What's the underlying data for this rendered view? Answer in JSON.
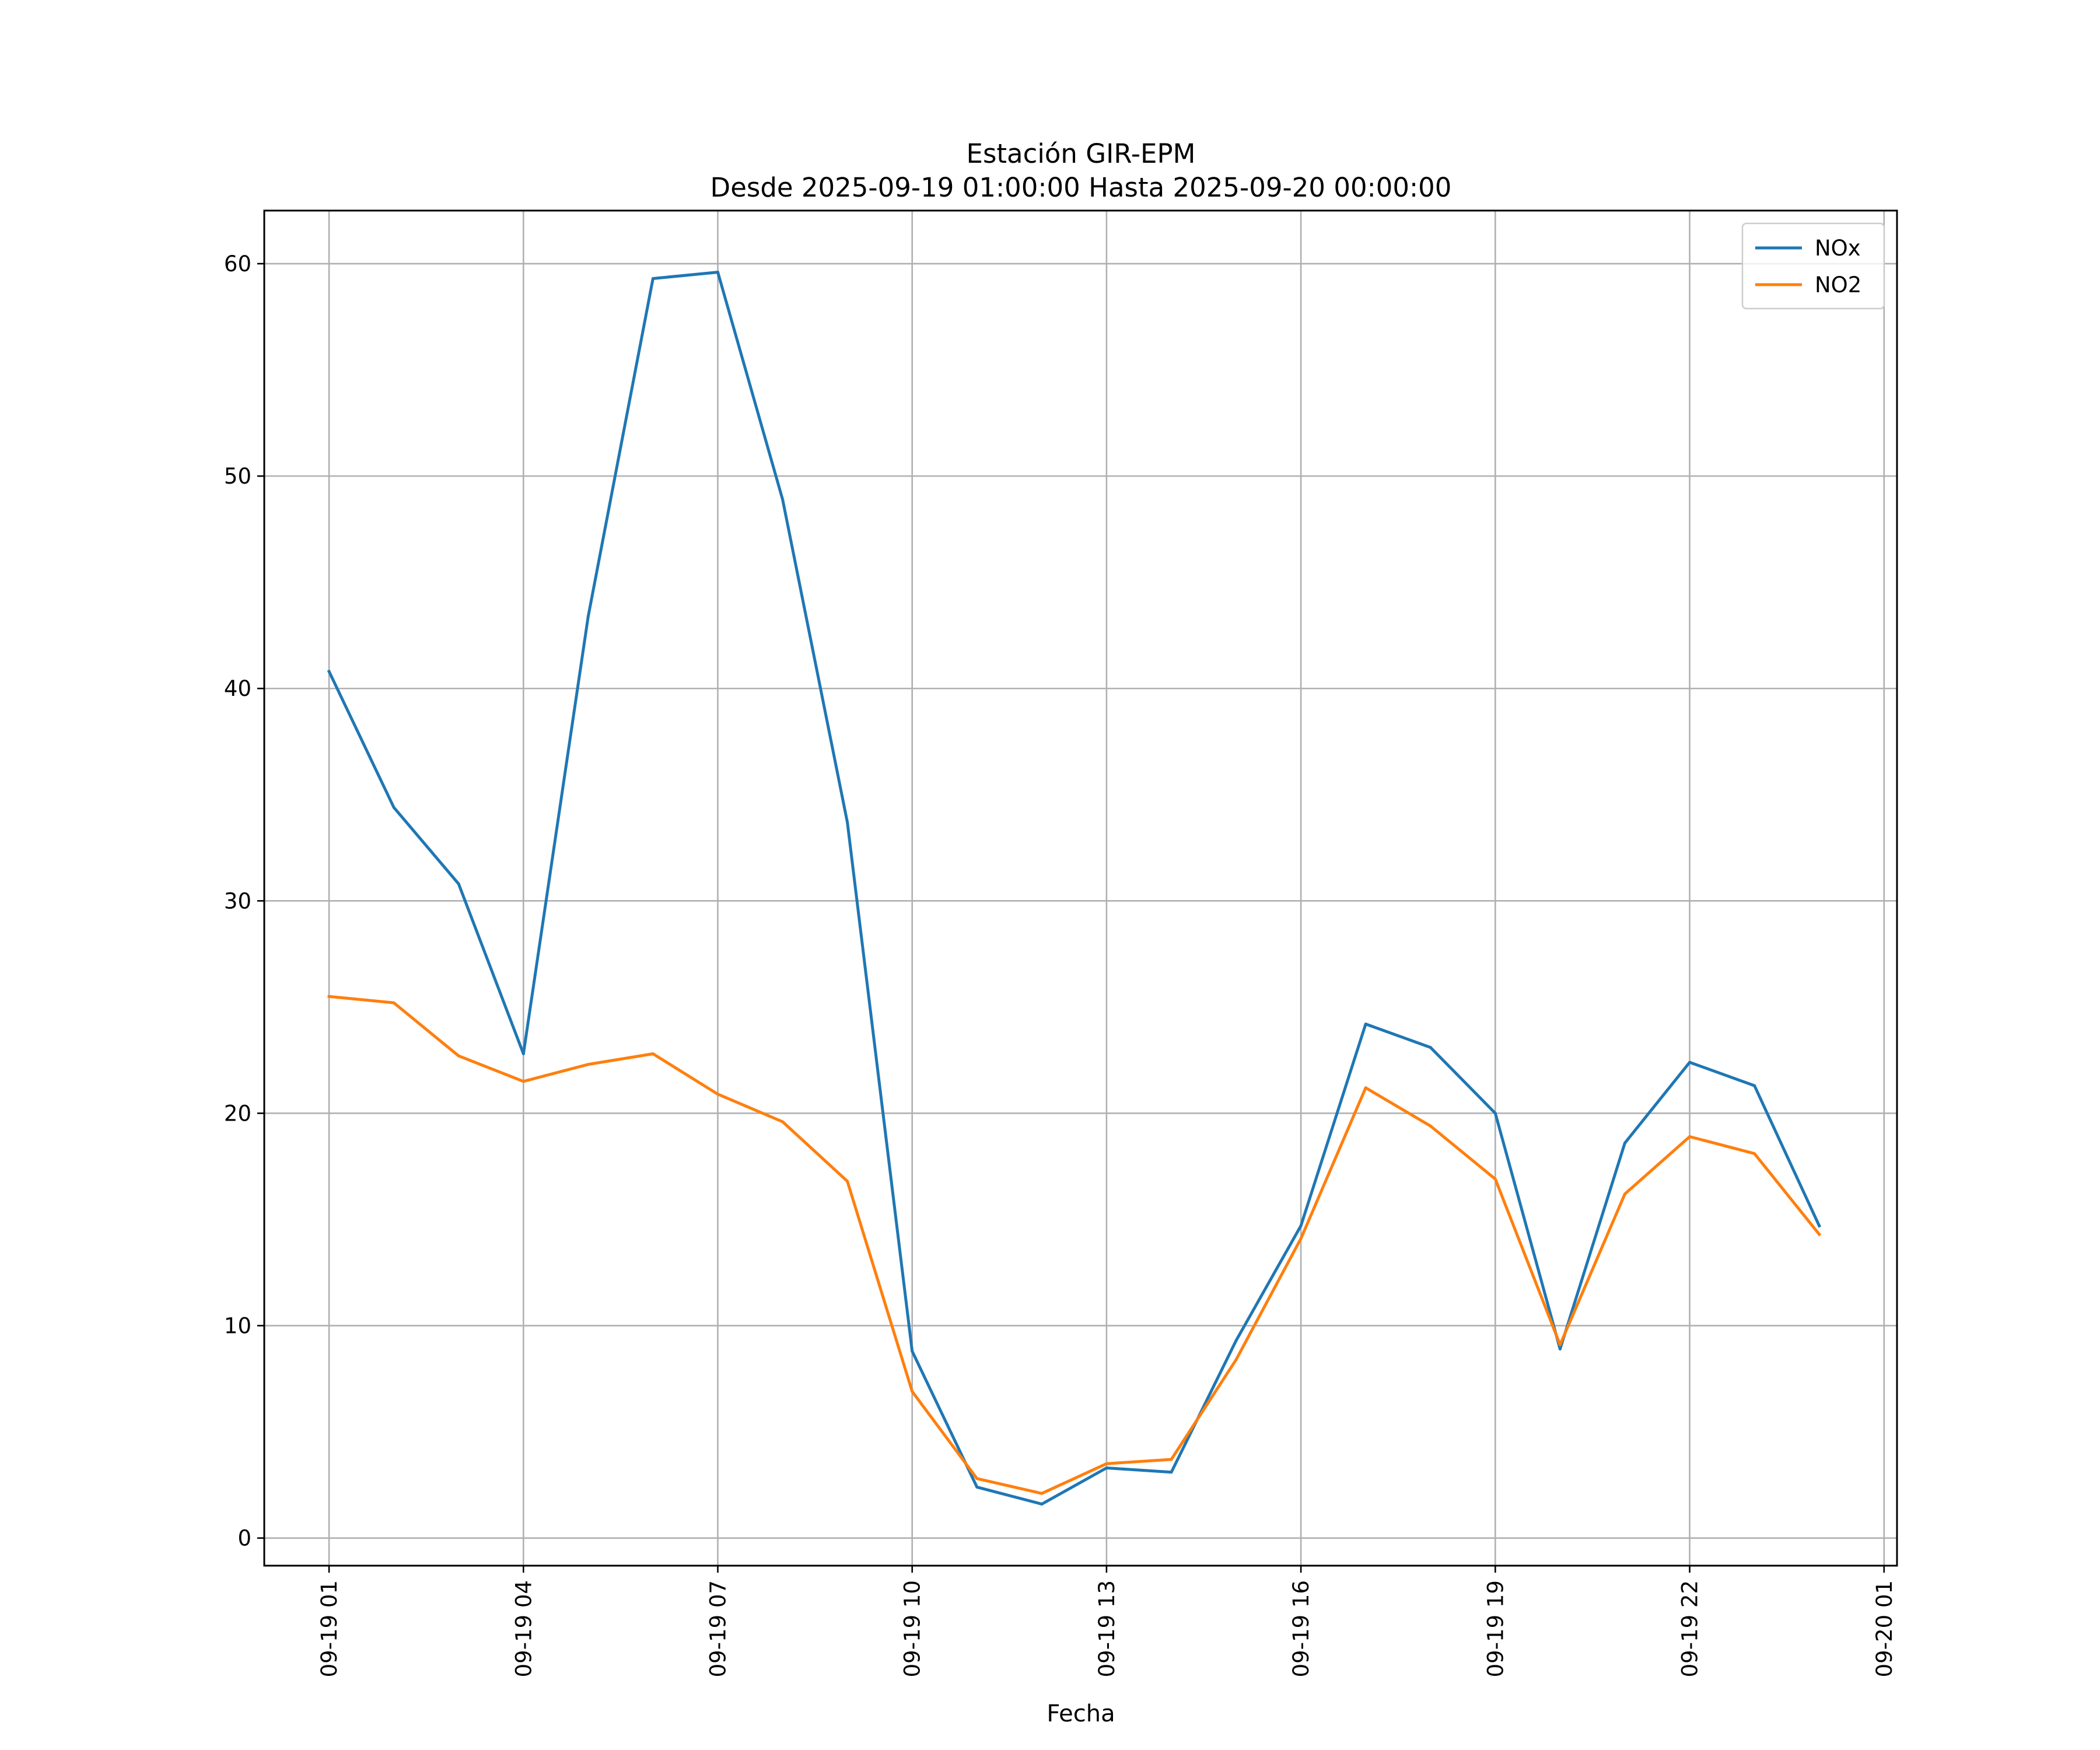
{
  "chart_data": {
    "type": "line",
    "title": "Estación GIR-EPM",
    "subtitle": "Desde 2025-09-19 01:00:00 Hasta 2025-09-20 00:00:00",
    "xlabel": "Fecha",
    "ylabel": "",
    "x": [
      "2025-09-19 01:00",
      "2025-09-19 02:00",
      "2025-09-19 03:00",
      "2025-09-19 04:00",
      "2025-09-19 05:00",
      "2025-09-19 06:00",
      "2025-09-19 07:00",
      "2025-09-19 08:00",
      "2025-09-19 09:00",
      "2025-09-19 10:00",
      "2025-09-19 11:00",
      "2025-09-19 12:00",
      "2025-09-19 13:00",
      "2025-09-19 14:00",
      "2025-09-19 15:00",
      "2025-09-19 16:00",
      "2025-09-19 17:00",
      "2025-09-19 18:00",
      "2025-09-19 19:00",
      "2025-09-19 20:00",
      "2025-09-19 21:00",
      "2025-09-19 22:00",
      "2025-09-19 23:00",
      "2025-09-20 00:00"
    ],
    "xlim": [
      "2025-09-19 00:00",
      "2025-09-20 01:12"
    ],
    "xticks": [
      "09-19 01",
      "09-19 04",
      "09-19 07",
      "09-19 10",
      "09-19 13",
      "09-19 16",
      "09-19 19",
      "09-19 22",
      "09-20 01"
    ],
    "xtick_positions": [
      "2025-09-19 01:00",
      "2025-09-19 04:00",
      "2025-09-19 07:00",
      "2025-09-19 10:00",
      "2025-09-19 13:00",
      "2025-09-19 16:00",
      "2025-09-19 19:00",
      "2025-09-19 22:00",
      "2025-09-20 01:00"
    ],
    "ylim": [
      -1.3,
      62.5
    ],
    "yticks": [
      0,
      10,
      20,
      30,
      40,
      50,
      60
    ],
    "grid": true,
    "legend_position": "top-right",
    "series": [
      {
        "name": "NOx",
        "color": "#1f77b4",
        "values": [
          40.8,
          34.4,
          30.8,
          22.8,
          43.4,
          59.3,
          59.6,
          48.9,
          33.7,
          8.8,
          2.4,
          1.6,
          3.3,
          3.1,
          9.3,
          14.7,
          24.2,
          23.1,
          20.0,
          8.9,
          18.6,
          22.4,
          21.3,
          14.7
        ]
      },
      {
        "name": "NO2",
        "color": "#ff7f0e",
        "values": [
          25.5,
          25.2,
          22.7,
          21.5,
          22.3,
          22.8,
          20.9,
          19.6,
          16.8,
          6.9,
          2.8,
          2.1,
          3.5,
          3.7,
          8.4,
          14.1,
          21.2,
          19.4,
          16.9,
          9.1,
          16.2,
          18.9,
          18.1,
          14.3
        ]
      }
    ]
  }
}
